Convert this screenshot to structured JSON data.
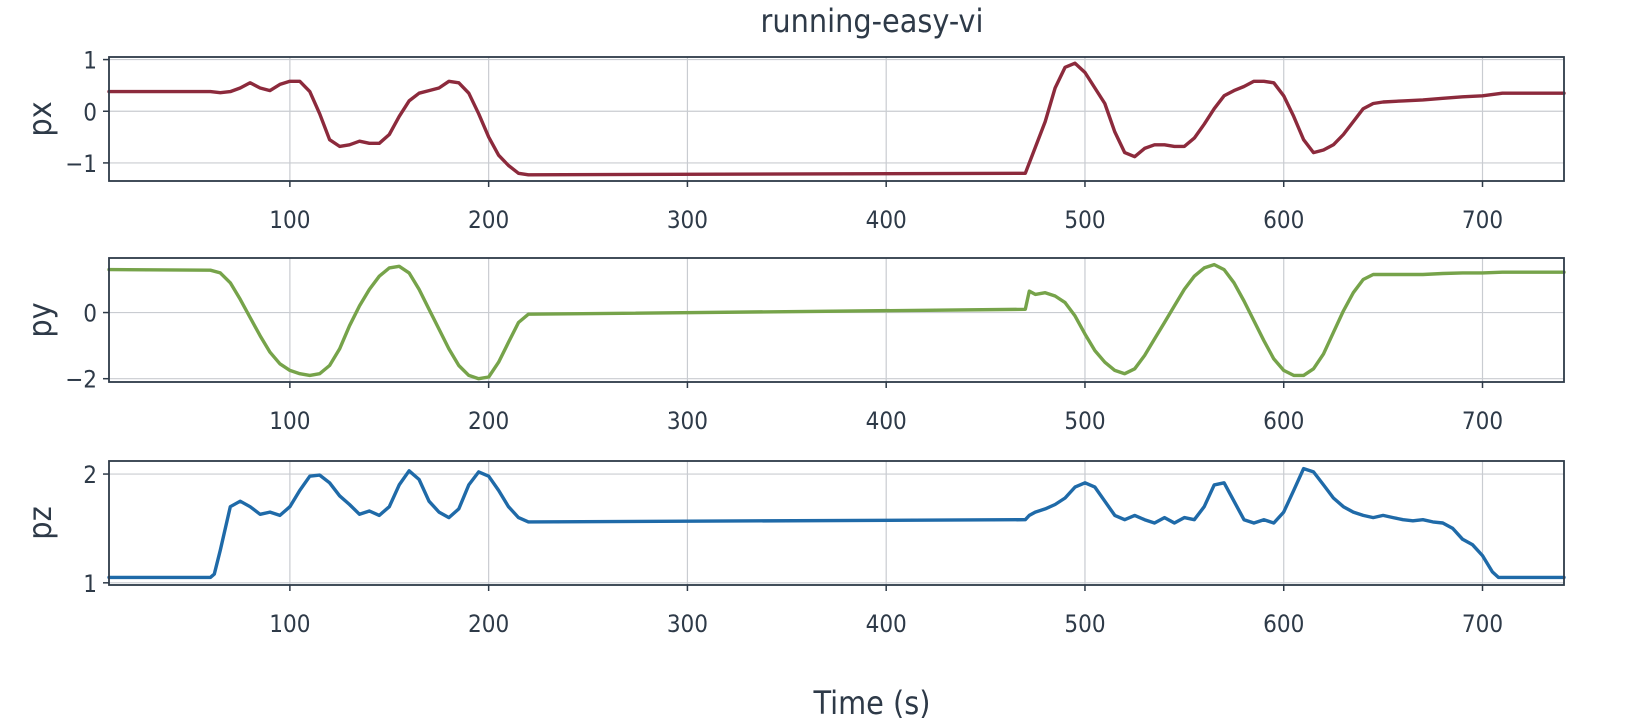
{
  "chart_data": {
    "type": "line",
    "title": "running-easy-vi",
    "xlabel": "Time (s)",
    "xlim": [
      9,
      741
    ],
    "xticks": [
      100,
      200,
      300,
      400,
      500,
      600,
      700
    ],
    "grid": true,
    "panels": [
      {
        "key": "px",
        "ylabel": "px",
        "color": "#8c2a3c",
        "ylim": [
          -1.35,
          1.05
        ],
        "yticks": [
          -1,
          0,
          1
        ],
        "x": [
          9,
          60,
          65,
          70,
          75,
          80,
          85,
          90,
          95,
          100,
          105,
          110,
          115,
          120,
          125,
          130,
          135,
          140,
          145,
          150,
          155,
          160,
          165,
          170,
          175,
          180,
          185,
          190,
          195,
          200,
          205,
          210,
          215,
          220,
          470,
          475,
          480,
          485,
          490,
          495,
          500,
          505,
          510,
          515,
          520,
          525,
          530,
          535,
          540,
          545,
          550,
          555,
          560,
          565,
          570,
          575,
          580,
          585,
          590,
          595,
          600,
          605,
          610,
          615,
          620,
          625,
          630,
          635,
          640,
          645,
          650,
          660,
          670,
          680,
          690,
          700,
          710,
          741
        ],
        "y": [
          0.38,
          0.38,
          0.36,
          0.38,
          0.45,
          0.55,
          0.45,
          0.4,
          0.52,
          0.58,
          0.58,
          0.38,
          -0.05,
          -0.55,
          -0.68,
          -0.65,
          -0.58,
          -0.62,
          -0.62,
          -0.45,
          -0.1,
          0.2,
          0.35,
          0.4,
          0.45,
          0.58,
          0.55,
          0.35,
          -0.05,
          -0.5,
          -0.85,
          -1.05,
          -1.2,
          -1.23,
          -1.2,
          -0.7,
          -0.2,
          0.45,
          0.85,
          0.93,
          0.75,
          0.45,
          0.15,
          -0.4,
          -0.8,
          -0.88,
          -0.72,
          -0.65,
          -0.65,
          -0.68,
          -0.68,
          -0.52,
          -0.25,
          0.05,
          0.3,
          0.4,
          0.48,
          0.58,
          0.58,
          0.55,
          0.3,
          -0.1,
          -0.55,
          -0.8,
          -0.75,
          -0.65,
          -0.45,
          -0.2,
          0.05,
          0.15,
          0.18,
          0.2,
          0.22,
          0.25,
          0.28,
          0.3,
          0.35,
          0.35
        ]
      },
      {
        "key": "py",
        "ylabel": "py",
        "color": "#76a34a",
        "ylim": [
          -2.1,
          1.65
        ],
        "yticks": [
          -2,
          0
        ],
        "x": [
          9,
          60,
          65,
          70,
          75,
          80,
          85,
          90,
          95,
          100,
          105,
          110,
          115,
          120,
          125,
          130,
          135,
          140,
          145,
          150,
          155,
          160,
          165,
          170,
          175,
          180,
          185,
          190,
          195,
          200,
          205,
          210,
          215,
          220,
          470,
          472,
          475,
          480,
          485,
          490,
          495,
          500,
          505,
          510,
          515,
          520,
          525,
          530,
          535,
          540,
          545,
          550,
          555,
          560,
          565,
          570,
          575,
          580,
          585,
          590,
          595,
          600,
          605,
          610,
          615,
          620,
          625,
          630,
          635,
          640,
          645,
          650,
          660,
          670,
          680,
          690,
          700,
          710,
          741
        ],
        "y": [
          1.3,
          1.28,
          1.2,
          0.9,
          0.4,
          -0.15,
          -0.7,
          -1.2,
          -1.55,
          -1.75,
          -1.85,
          -1.9,
          -1.85,
          -1.6,
          -1.1,
          -0.4,
          0.2,
          0.7,
          1.1,
          1.35,
          1.4,
          1.2,
          0.7,
          0.1,
          -0.5,
          -1.1,
          -1.6,
          -1.9,
          -2.0,
          -1.95,
          -1.5,
          -0.9,
          -0.3,
          -0.05,
          0.1,
          0.65,
          0.55,
          0.6,
          0.5,
          0.3,
          -0.1,
          -0.65,
          -1.15,
          -1.5,
          -1.75,
          -1.85,
          -1.7,
          -1.3,
          -0.8,
          -0.3,
          0.2,
          0.7,
          1.1,
          1.35,
          1.45,
          1.3,
          0.9,
          0.35,
          -0.25,
          -0.85,
          -1.4,
          -1.75,
          -1.9,
          -1.9,
          -1.7,
          -1.25,
          -0.6,
          0.05,
          0.6,
          1.0,
          1.15,
          1.15,
          1.15,
          1.15,
          1.18,
          1.2,
          1.2,
          1.22,
          1.22
        ]
      },
      {
        "key": "pz",
        "ylabel": "pz",
        "color": "#1f6aa8",
        "ylim": [
          0.98,
          2.12
        ],
        "yticks": [
          1,
          2
        ],
        "x": [
          9,
          60,
          62,
          65,
          70,
          75,
          80,
          85,
          90,
          95,
          100,
          105,
          110,
          115,
          120,
          125,
          130,
          135,
          140,
          145,
          150,
          155,
          160,
          165,
          170,
          175,
          180,
          185,
          190,
          195,
          200,
          205,
          210,
          215,
          220,
          470,
          472,
          475,
          480,
          485,
          490,
          495,
          500,
          505,
          510,
          515,
          520,
          525,
          530,
          535,
          540,
          545,
          550,
          555,
          560,
          565,
          570,
          575,
          580,
          585,
          590,
          595,
          600,
          605,
          610,
          615,
          620,
          625,
          630,
          635,
          640,
          645,
          650,
          655,
          660,
          665,
          670,
          675,
          680,
          685,
          690,
          695,
          700,
          705,
          708,
          741
        ],
        "y": [
          1.05,
          1.05,
          1.08,
          1.3,
          1.7,
          1.75,
          1.7,
          1.63,
          1.65,
          1.62,
          1.7,
          1.85,
          1.98,
          1.99,
          1.92,
          1.8,
          1.72,
          1.63,
          1.66,
          1.62,
          1.7,
          1.9,
          2.03,
          1.95,
          1.75,
          1.65,
          1.6,
          1.68,
          1.9,
          2.02,
          1.98,
          1.85,
          1.7,
          1.6,
          1.56,
          1.58,
          1.62,
          1.65,
          1.68,
          1.72,
          1.78,
          1.88,
          1.92,
          1.88,
          1.75,
          1.62,
          1.58,
          1.62,
          1.58,
          1.55,
          1.6,
          1.55,
          1.6,
          1.58,
          1.7,
          1.9,
          1.92,
          1.75,
          1.58,
          1.55,
          1.58,
          1.55,
          1.65,
          1.85,
          2.05,
          2.02,
          1.9,
          1.78,
          1.7,
          1.65,
          1.62,
          1.6,
          1.62,
          1.6,
          1.58,
          1.57,
          1.58,
          1.56,
          1.55,
          1.5,
          1.4,
          1.35,
          1.25,
          1.1,
          1.05,
          1.05
        ]
      }
    ]
  }
}
